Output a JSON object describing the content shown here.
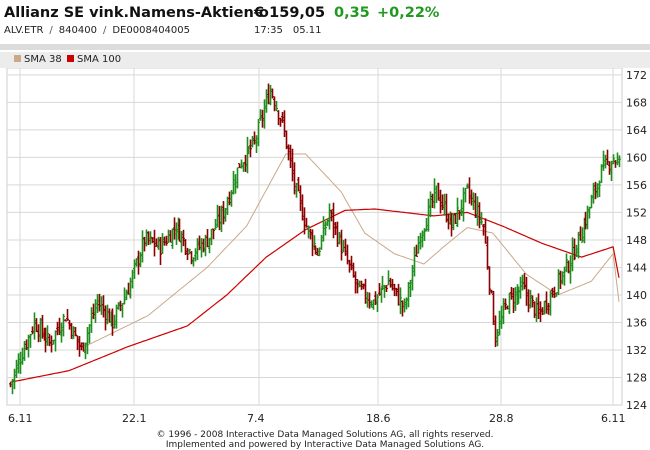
{
  "header": {
    "title": "Allianz SE vink.Namens-Aktien o",
    "price": "€ 159,05",
    "change": "0,35",
    "change_pct": "+0,22%",
    "symbol": "ALV.ETR",
    "wkn": "840400",
    "isin": "DE0008404005",
    "time": "17:35",
    "date": "05.11"
  },
  "legend": {
    "items": [
      {
        "label": "SMA 38",
        "color": "#c9a98a"
      },
      {
        "label": "SMA 100",
        "color": "#cc0000"
      }
    ]
  },
  "footer": {
    "line1": "© 1996 - 2008 Interactive Data Managed Solutions AG, all rights reserved.",
    "line2": "Implemented and powered by Interactive Data Managed Solutions AG."
  },
  "colors": {
    "up": "#1e8f1e",
    "down": "#8b0000",
    "sma38": "#c9a98a",
    "sma100": "#cc0000",
    "grid": "#d8d8d8"
  },
  "chart_data": {
    "type": "ohlc",
    "ylim": [
      124,
      173
    ],
    "yticks": [
      124,
      128,
      132,
      136,
      140,
      144,
      148,
      152,
      156,
      160,
      164,
      168,
      172
    ],
    "xticks": [
      "6.11",
      "22.1",
      "7.4",
      "18.6",
      "28.8",
      "6.11"
    ],
    "grid": true,
    "legend_position": "top-left",
    "close_anchors": [
      {
        "i": 0,
        "close": 127
      },
      {
        "i": 5,
        "close": 131
      },
      {
        "i": 12,
        "close": 136
      },
      {
        "i": 20,
        "close": 133
      },
      {
        "i": 28,
        "close": 137
      },
      {
        "i": 36,
        "close": 132
      },
      {
        "i": 44,
        "close": 139
      },
      {
        "i": 52,
        "close": 136
      },
      {
        "i": 60,
        "close": 141
      },
      {
        "i": 68,
        "close": 148
      },
      {
        "i": 76,
        "close": 147
      },
      {
        "i": 84,
        "close": 150
      },
      {
        "i": 92,
        "close": 146
      },
      {
        "i": 100,
        "close": 148
      },
      {
        "i": 108,
        "close": 152
      },
      {
        "i": 116,
        "close": 159
      },
      {
        "i": 124,
        "close": 162
      },
      {
        "i": 132,
        "close": 170
      },
      {
        "i": 138,
        "close": 165
      },
      {
        "i": 144,
        "close": 156
      },
      {
        "i": 150,
        "close": 150
      },
      {
        "i": 156,
        "close": 146
      },
      {
        "i": 162,
        "close": 152
      },
      {
        "i": 168,
        "close": 147
      },
      {
        "i": 176,
        "close": 141
      },
      {
        "i": 184,
        "close": 139
      },
      {
        "i": 192,
        "close": 142
      },
      {
        "i": 200,
        "close": 138
      },
      {
        "i": 208,
        "close": 149
      },
      {
        "i": 216,
        "close": 155
      },
      {
        "i": 224,
        "close": 150
      },
      {
        "i": 232,
        "close": 155
      },
      {
        "i": 240,
        "close": 150
      },
      {
        "i": 246,
        "close": 134
      },
      {
        "i": 252,
        "close": 139
      },
      {
        "i": 260,
        "close": 141
      },
      {
        "i": 268,
        "close": 137
      },
      {
        "i": 276,
        "close": 141
      },
      {
        "i": 284,
        "close": 145
      },
      {
        "i": 292,
        "close": 151
      },
      {
        "i": 300,
        "close": 158
      },
      {
        "i": 306,
        "close": 160
      },
      {
        "i": 309,
        "close": 159
      }
    ],
    "sma38_anchors": [
      {
        "i": 38,
        "v": 132.5
      },
      {
        "i": 70,
        "v": 137
      },
      {
        "i": 100,
        "v": 144
      },
      {
        "i": 120,
        "v": 150
      },
      {
        "i": 140,
        "v": 160.5
      },
      {
        "i": 150,
        "v": 160.5
      },
      {
        "i": 168,
        "v": 155
      },
      {
        "i": 180,
        "v": 149
      },
      {
        "i": 195,
        "v": 146
      },
      {
        "i": 210,
        "v": 144.5
      },
      {
        "i": 220,
        "v": 147
      },
      {
        "i": 232,
        "v": 149.8
      },
      {
        "i": 245,
        "v": 149
      },
      {
        "i": 262,
        "v": 143
      },
      {
        "i": 278,
        "v": 140
      },
      {
        "i": 295,
        "v": 142
      },
      {
        "i": 306,
        "v": 146
      },
      {
        "i": 309,
        "v": 139
      }
    ],
    "sma100_anchors": [
      {
        "i": 0,
        "v": 127.3
      },
      {
        "i": 30,
        "v": 129
      },
      {
        "i": 60,
        "v": 132.5
      },
      {
        "i": 90,
        "v": 135.5
      },
      {
        "i": 110,
        "v": 140
      },
      {
        "i": 130,
        "v": 145.5
      },
      {
        "i": 150,
        "v": 149.5
      },
      {
        "i": 170,
        "v": 152.3
      },
      {
        "i": 185,
        "v": 152.5
      },
      {
        "i": 200,
        "v": 152
      },
      {
        "i": 215,
        "v": 151.5
      },
      {
        "i": 232,
        "v": 152
      },
      {
        "i": 250,
        "v": 150
      },
      {
        "i": 270,
        "v": 147.5
      },
      {
        "i": 290,
        "v": 145.5
      },
      {
        "i": 306,
        "v": 147
      },
      {
        "i": 309,
        "v": 142.5
      }
    ]
  }
}
